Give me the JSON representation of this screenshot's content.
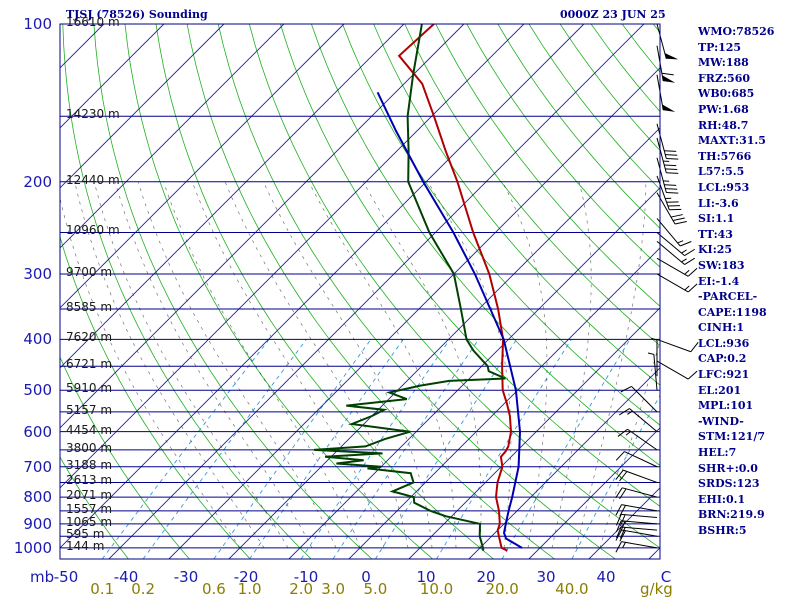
{
  "chart_data": {
    "type": "skew-t log-p sounding",
    "title_left": "TJSJ (78526) Sounding",
    "title_right": "0000Z 23 JUN 25",
    "pressure_unit": "mb",
    "mixing_unit": "g/kg",
    "plim": [
      100,
      1050
    ],
    "xlim_at_1000mb": [
      -50,
      50
    ],
    "pressure_ticks": [
      100,
      200,
      300,
      400,
      500,
      600,
      700,
      800,
      900,
      1000
    ],
    "temperature_ticks": [
      -50,
      -40,
      -30,
      -20,
      -10,
      0,
      10,
      20,
      30,
      40,
      50
    ],
    "temperature_tick_labels": [
      "-50",
      "-40",
      "-30",
      "-20",
      "-10",
      "0",
      "10",
      "20",
      "30",
      "40",
      "C"
    ],
    "mixing_ratio_lines": [
      {
        "label": "0.1",
        "w": 0.1
      },
      {
        "label": "0.2",
        "w": 0.2
      },
      {
        "label": "0.6",
        "w": 0.6
      },
      {
        "label": "1.0",
        "w": 1.0
      },
      {
        "label": "2.0",
        "w": 2.0
      },
      {
        "label": "3.0",
        "w": 3.0
      },
      {
        "label": "5.0",
        "w": 5.0
      },
      {
        "label": "10.0",
        "w": 10.0
      },
      {
        "label": "20.0",
        "w": 20.0
      },
      {
        "label": "40.0",
        "w": 40.0
      }
    ],
    "height_levels": [
      {
        "p": 100,
        "label": "16610 m"
      },
      {
        "p": 150,
        "label": "14230 m"
      },
      {
        "p": 200,
        "label": "12440 m"
      },
      {
        "p": 250,
        "label": "10960 m"
      },
      {
        "p": 300,
        "label": "9700 m"
      },
      {
        "p": 350,
        "label": "8585 m"
      },
      {
        "p": 400,
        "label": "7620 m"
      },
      {
        "p": 450,
        "label": "6721 m"
      },
      {
        "p": 500,
        "label": "5910 m"
      },
      {
        "p": 550,
        "label": "5157 m"
      },
      {
        "p": 600,
        "label": "4454 m"
      },
      {
        "p": 650,
        "label": "3800 m"
      },
      {
        "p": 700,
        "label": "3188 m"
      },
      {
        "p": 750,
        "label": "2613 m"
      },
      {
        "p": 800,
        "label": "2071 m"
      },
      {
        "p": 850,
        "label": "1557 m"
      },
      {
        "p": 900,
        "label": "1065 m"
      },
      {
        "p": 950,
        "label": "595 m"
      },
      {
        "p": 1000,
        "label": "144 m"
      }
    ],
    "series": [
      {
        "name": "Temperature",
        "color": "#b00000",
        "points": [
          [
            1012,
            25
          ],
          [
            1000,
            23.6
          ],
          [
            950,
            21.2
          ],
          [
            925,
            20.0
          ],
          [
            900,
            19.3
          ],
          [
            850,
            17.0
          ],
          [
            800,
            14.2
          ],
          [
            750,
            12.0
          ],
          [
            700,
            10.2
          ],
          [
            670,
            8.3
          ],
          [
            655,
            8.2
          ],
          [
            640,
            7.8
          ],
          [
            600,
            5.8
          ],
          [
            560,
            3.0
          ],
          [
            530,
            0.4
          ],
          [
            500,
            -2.5
          ],
          [
            450,
            -6.6
          ],
          [
            400,
            -10.9
          ],
          [
            350,
            -16.8
          ],
          [
            300,
            -24.1
          ],
          [
            250,
            -33.7
          ],
          [
            200,
            -44.8
          ],
          [
            175,
            -51.8
          ],
          [
            150,
            -59.6
          ],
          [
            130,
            -67.0
          ],
          [
            115,
            -75.5
          ],
          [
            100,
            -75.0
          ]
        ]
      },
      {
        "name": "Dewpoint",
        "color": "#004000",
        "points": [
          [
            1012,
            21
          ],
          [
            1000,
            20.5
          ],
          [
            950,
            18.0
          ],
          [
            900,
            16.0
          ],
          [
            870,
            9.0
          ],
          [
            850,
            5.6
          ],
          [
            820,
            1.5
          ],
          [
            800,
            0.5
          ],
          [
            780,
            -4.0
          ],
          [
            750,
            -2.0
          ],
          [
            720,
            -4.0
          ],
          [
            705,
            -12.0
          ],
          [
            700,
            -10.0
          ],
          [
            690,
            -18.0
          ],
          [
            680,
            -14.0
          ],
          [
            670,
            -21.0
          ],
          [
            660,
            -12.0
          ],
          [
            650,
            -24.0
          ],
          [
            640,
            -16.0
          ],
          [
            620,
            -14.0
          ],
          [
            600,
            -11.0
          ],
          [
            580,
            -22.0
          ],
          [
            560,
            -20.0
          ],
          [
            545,
            -19.0
          ],
          [
            535,
            -26.0
          ],
          [
            520,
            -17.0
          ],
          [
            505,
            -21.0
          ],
          [
            490,
            -17.0
          ],
          [
            480,
            -13.0
          ],
          [
            475,
            -4.0
          ],
          [
            460,
            -8.0
          ],
          [
            450,
            -9.0
          ],
          [
            420,
            -14.0
          ],
          [
            400,
            -17.0
          ],
          [
            350,
            -23.0
          ],
          [
            300,
            -30.0
          ],
          [
            250,
            -41.0
          ],
          [
            200,
            -53.0
          ],
          [
            175,
            -58.0
          ],
          [
            150,
            -64.0
          ],
          [
            125,
            -70.0
          ],
          [
            100,
            -77.0
          ]
        ]
      },
      {
        "name": "Parcel",
        "color": "#0000b0",
        "points": [
          [
            1000,
            27.0
          ],
          [
            960,
            22.8
          ],
          [
            936,
            21.5
          ],
          [
            900,
            20.3
          ],
          [
            850,
            18.6
          ],
          [
            800,
            16.9
          ],
          [
            700,
            12.9
          ],
          [
            600,
            7.3
          ],
          [
            500,
            -0.3
          ],
          [
            400,
            -10.8
          ],
          [
            300,
            -26.5
          ],
          [
            250,
            -37.0
          ],
          [
            200,
            -50.5
          ],
          [
            160,
            -63.5
          ],
          [
            135,
            -73.0
          ]
        ]
      }
    ],
    "wind_barbs": [
      {
        "p": 1000,
        "dir": 100,
        "spd": 15
      },
      {
        "p": 950,
        "dir": 100,
        "spd": 20
      },
      {
        "p": 925,
        "dir": 95,
        "spd": 20
      },
      {
        "p": 900,
        "dir": 95,
        "spd": 20
      },
      {
        "p": 875,
        "dir": 95,
        "spd": 20
      },
      {
        "p": 850,
        "dir": 100,
        "spd": 20
      },
      {
        "p": 800,
        "dir": 105,
        "spd": 20
      },
      {
        "p": 750,
        "dir": 110,
        "spd": 20
      },
      {
        "p": 700,
        "dir": 115,
        "spd": 10
      },
      {
        "p": 650,
        "dir": 125,
        "spd": 15
      },
      {
        "p": 600,
        "dir": 130,
        "spd": 15
      },
      {
        "p": 550,
        "dir": 135,
        "spd": 10
      },
      {
        "p": 500,
        "dir": 175,
        "spd": 5
      },
      {
        "p": 470,
        "dir": 180,
        "spd": 5
      },
      {
        "p": 440,
        "dir": 300,
        "spd": 10
      },
      {
        "p": 400,
        "dir": 290,
        "spd": 10
      },
      {
        "p": 300,
        "dir": 300,
        "spd": 15
      },
      {
        "p": 280,
        "dir": 300,
        "spd": 15
      },
      {
        "p": 260,
        "dir": 310,
        "spd": 15
      },
      {
        "p": 250,
        "dir": 310,
        "spd": 15
      },
      {
        "p": 235,
        "dir": 320,
        "spd": 15
      },
      {
        "p": 210,
        "dir": 330,
        "spd": 30
      },
      {
        "p": 195,
        "dir": 340,
        "spd": 35
      },
      {
        "p": 180,
        "dir": 345,
        "spd": 35
      },
      {
        "p": 165,
        "dir": 345,
        "spd": 35
      },
      {
        "p": 155,
        "dir": 345,
        "spd": 30
      },
      {
        "p": 125,
        "dir": 350,
        "spd": 50
      },
      {
        "p": 110,
        "dir": 350,
        "spd": 60
      },
      {
        "p": 100,
        "dir": 345,
        "spd": 50
      }
    ],
    "stats": [
      "WMO:78526",
      "TP:125",
      "MW:188",
      "FRZ:560",
      "WB0:685",
      "PW:1.68",
      "RH:48.7",
      "MAXT:31.5",
      "TH:5766",
      "L57:5.5",
      "LCL:953",
      "LI:-3.6",
      "SI:1.1",
      "TT:43",
      "KI:25",
      "SW:183",
      "EI:-1.4",
      "-PARCEL-",
      "CAPE:1198",
      "CINH:1",
      "LCL:936",
      "CAP:0.2",
      "LFC:921",
      "EL:201",
      "MPL:101",
      "-WIND-",
      "STM:121/7",
      "HEL:7",
      "SHR+:0.0",
      "SRDS:123",
      "EHI:0.1",
      "BRN:219.9",
      "BSHR:5"
    ]
  },
  "colors": {
    "isobar": "#00008b",
    "isotherm": "#2020a0",
    "dry_adiabat": "#20b020",
    "moist_adiabat": "#000000",
    "mixing_ratio": "#3399dd",
    "background": "#ffffff",
    "barb": "#000000"
  }
}
